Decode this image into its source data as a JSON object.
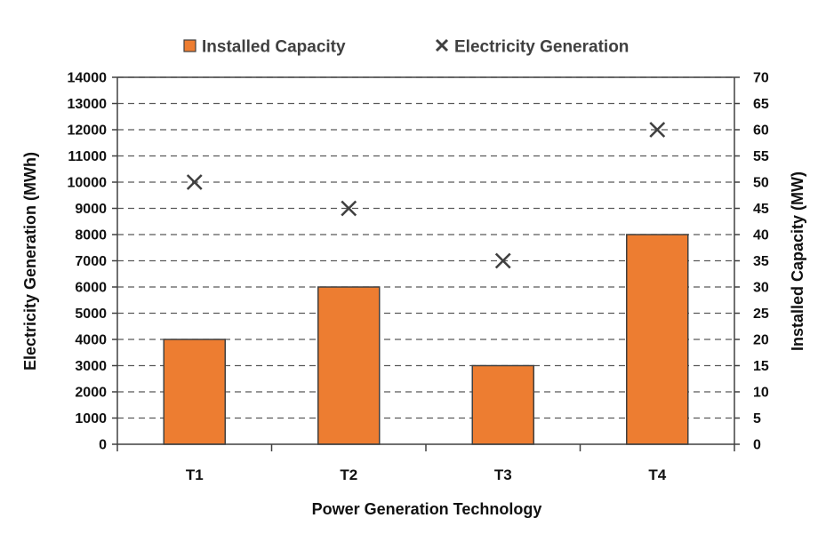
{
  "chart_data": {
    "type": "bar",
    "categories": [
      "T1",
      "T2",
      "T3",
      "T4"
    ],
    "series": [
      {
        "name": "Installed Capacity",
        "kind": "bar",
        "axis": "right",
        "color": "#ED7D31",
        "values": [
          20,
          30,
          15,
          40
        ]
      },
      {
        "name": "Electricity Generation",
        "kind": "scatter",
        "marker": "x",
        "axis": "left",
        "color": "#404040",
        "values": [
          10000,
          9000,
          7000,
          12000
        ]
      }
    ],
    "xlabel": "Power Generation Technology",
    "ylabel_left": "Electricity Generation (MWh)",
    "ylabel_right": "Installed Capacity (MW)",
    "ylim_left": [
      0,
      14000
    ],
    "ylim_right": [
      0,
      70
    ],
    "yticks_left": [
      "0",
      "1000",
      "2000",
      "3000",
      "4000",
      "5000",
      "6000",
      "7000",
      "8000",
      "9000",
      "10000",
      "11000",
      "12000",
      "13000",
      "14000"
    ],
    "yticks_right": [
      "0",
      "5",
      "10",
      "15",
      "20",
      "25",
      "30",
      "35",
      "40",
      "45",
      "50",
      "55",
      "60",
      "65",
      "70"
    ],
    "grid": "horizontal dashed",
    "legend": "top-center"
  }
}
